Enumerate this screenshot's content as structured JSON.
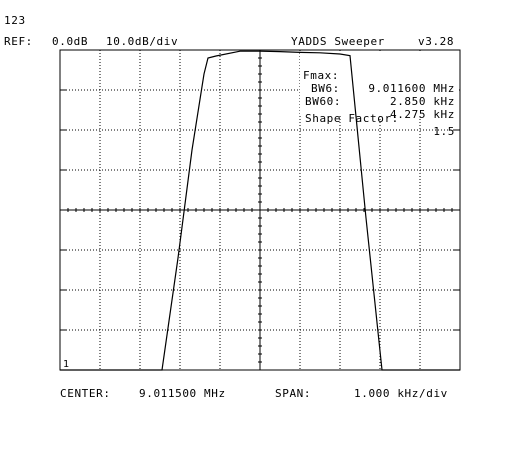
{
  "header": {
    "title_line": "123",
    "ref_label": "REF:",
    "ref_value": "0.0dB",
    "scale": "10.0dB/div",
    "app_name": "YADDS Sweeper",
    "version": "v3.28"
  },
  "readout": {
    "fmax_label": "Fmax:",
    "fmax_value": "9.011600 MHz",
    "bw6_label": "BW6:",
    "bw6_value": "2.850 kHz",
    "bw60_label": "BW60:",
    "bw60_value": "4.275 kHz",
    "shape_label": "Shape Factor:",
    "shape_value": "1.5"
  },
  "marker_label": "1",
  "footer": {
    "center_label": "CENTER:",
    "center_value": "9.011500 MHz",
    "span_label": "SPAN:",
    "span_value": "1.000 kHz/div"
  },
  "colors": {
    "trace": "#000000",
    "grid": "#000000",
    "background": "#ffffff"
  },
  "chart_data": {
    "type": "line",
    "title": "",
    "xlabel": "",
    "ylabel": "",
    "x_unit": "kHz offset from center",
    "y_unit": "dB",
    "xlim": [
      -5,
      5
    ],
    "ylim": [
      -80,
      0
    ],
    "grid": true,
    "x_divisions": 10,
    "y_divisions": 8,
    "series": [
      {
        "x": [
          -5.0,
          -2.45,
          -2.05,
          -1.7,
          -1.4,
          -1.3,
          -1.1,
          -0.5,
          0.0,
          0.5,
          1.0,
          1.5,
          2.0,
          2.25,
          2.65,
          3.05,
          5.0
        ],
        "y": [
          -80.0,
          -80.0,
          -52.0,
          -25.0,
          -6.0,
          -2.0,
          -1.5,
          -0.3,
          -0.3,
          -0.4,
          -0.6,
          -0.7,
          -1.0,
          -1.4,
          -42.0,
          -80.0,
          -80.0
        ]
      }
    ]
  }
}
